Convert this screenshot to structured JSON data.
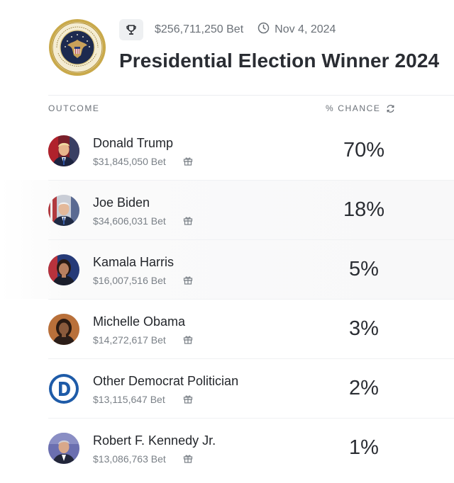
{
  "header": {
    "total_bet": "$256,711,250 Bet",
    "date": "Nov 4, 2024",
    "title": "Presidential Election Winner 2024",
    "seal_icon": "presidential-seal-icon",
    "trophy_icon": "trophy-icon",
    "clock_icon": "clock-icon"
  },
  "columns": {
    "outcome": "OUTCOME",
    "chance": "% CHANCE",
    "refresh_icon": "refresh-icon"
  },
  "outcomes": [
    {
      "name": "Donald Trump",
      "bet": "$31,845,050 Bet",
      "chance": "70%"
    },
    {
      "name": "Joe Biden",
      "bet": "$34,606,031 Bet",
      "chance": "18%"
    },
    {
      "name": "Kamala Harris",
      "bet": "$16,007,516 Bet",
      "chance": "5%"
    },
    {
      "name": "Michelle Obama",
      "bet": "$14,272,617 Bet",
      "chance": "3%"
    },
    {
      "name": "Other Democrat Politician",
      "bet": "$13,115,647 Bet",
      "chance": "2%"
    },
    {
      "name": "Robert F. Kennedy Jr.",
      "bet": "$13,086,763 Bet",
      "chance": "1%"
    }
  ],
  "colors": {
    "democrat_blue": "#1e5ba8",
    "text_primary": "#2a2d33",
    "text_muted": "#6b7178"
  }
}
